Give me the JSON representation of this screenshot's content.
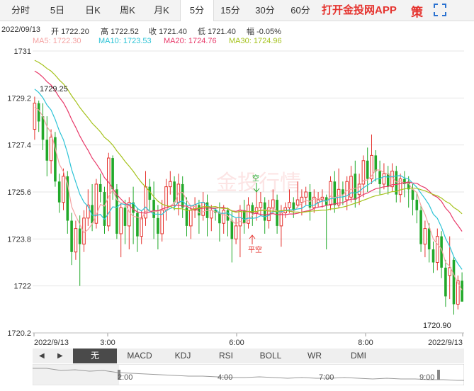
{
  "tabs": [
    "分时",
    "5日",
    "日K",
    "周K",
    "月K",
    "5分",
    "15分",
    "30分",
    "60分"
  ],
  "active_tab": "5分",
  "app_link": "打开金投网APP",
  "strategy_label": "策",
  "info": {
    "date": "2022/09/13",
    "open_label": "开",
    "open": "1722.20",
    "high_label": "高",
    "high": "1722.52",
    "close_label": "收",
    "close": "1721.40",
    "low_label": "低",
    "low": "1721.40",
    "change_label": "幅",
    "change": "-0.05%"
  },
  "ma": [
    {
      "label": "MA5: 1722.30",
      "color": "#f4a3a3"
    },
    {
      "label": "MA10: 1723.53",
      "color": "#2cc3d6"
    },
    {
      "label": "MA20: 1724.76",
      "color": "#e83a6a"
    },
    {
      "label": "MA30: 1724.96",
      "color": "#a5c21c"
    }
  ],
  "watermark": "金投行情",
  "signals": {
    "open_short": "空",
    "close_short": "平空"
  },
  "indicators": [
    "无",
    "MACD",
    "KDJ",
    "RSI",
    "BOLL",
    "WR",
    "DMI"
  ],
  "active_indicator": "无",
  "navigator": {
    "labels": [
      "2:00",
      "4:00",
      "7:00",
      "9:00"
    ]
  },
  "chart_data": {
    "type": "candlestick",
    "y_ticks": [
      "1731",
      "1729.2",
      "1727.4",
      "1725.6",
      "1723.8",
      "1722",
      "1720.2"
    ],
    "y_range": [
      1720.2,
      1731
    ],
    "x_labels": [
      "2022/9/13",
      "3:00",
      "6:00",
      "8:00",
      "2022/9/13"
    ],
    "max_label": "1729.25",
    "min_label": "1720.90",
    "candles": [
      [
        1728.0,
        1729.0,
        1729.25,
        1727.6
      ],
      [
        1729.0,
        1728.3,
        1729.1,
        1727.9
      ],
      [
        1728.5,
        1727.6,
        1729.0,
        1727.2
      ],
      [
        1727.6,
        1726.8,
        1728.5,
        1726.2
      ],
      [
        1726.8,
        1727.7,
        1728.0,
        1726.3
      ],
      [
        1727.7,
        1726.0,
        1727.9,
        1725.8
      ],
      [
        1726.0,
        1725.2,
        1726.3,
        1724.8
      ],
      [
        1725.2,
        1726.2,
        1726.5,
        1724.9
      ],
      [
        1726.2,
        1724.5,
        1726.4,
        1724.0
      ],
      [
        1724.5,
        1723.3,
        1724.8,
        1722.8
      ],
      [
        1723.3,
        1724.2,
        1724.5,
        1723.0
      ],
      [
        1724.2,
        1723.6,
        1724.7,
        1722.0
      ],
      [
        1723.6,
        1724.6,
        1724.9,
        1723.3
      ],
      [
        1724.6,
        1725.1,
        1725.7,
        1724.3
      ],
      [
        1725.1,
        1724.4,
        1725.9,
        1724.1
      ],
      [
        1724.4,
        1725.9,
        1726.1,
        1724.2
      ],
      [
        1725.9,
        1725.6,
        1726.3,
        1725.2
      ],
      [
        1725.6,
        1724.3,
        1725.8,
        1724.0
      ],
      [
        1724.3,
        1726.9,
        1727.1,
        1724.1
      ],
      [
        1726.9,
        1725.7,
        1727.0,
        1725.3
      ],
      [
        1725.7,
        1724.0,
        1725.9,
        1723.8
      ],
      [
        1724.0,
        1725.0,
        1725.2,
        1723.1
      ],
      [
        1725.0,
        1724.3,
        1725.3,
        1723.6
      ],
      [
        1724.3,
        1725.2,
        1725.4,
        1723.4
      ],
      [
        1725.2,
        1724.8,
        1725.8,
        1723.6
      ],
      [
        1724.8,
        1723.9,
        1725.0,
        1723.3
      ],
      [
        1723.9,
        1724.6,
        1724.9,
        1723.6
      ],
      [
        1724.6,
        1725.8,
        1726.4,
        1724.3
      ],
      [
        1725.8,
        1725.3,
        1726.1,
        1724.9
      ],
      [
        1725.3,
        1724.6,
        1726.0,
        1723.8
      ],
      [
        1724.6,
        1724.0,
        1725.1,
        1723.4
      ],
      [
        1724.0,
        1724.9,
        1725.3,
        1723.7
      ],
      [
        1724.9,
        1725.8,
        1726.1,
        1724.5
      ],
      [
        1725.8,
        1726.0,
        1726.4,
        1725.5
      ],
      [
        1726.0,
        1725.2,
        1726.2,
        1724.9
      ],
      [
        1725.2,
        1725.9,
        1726.3,
        1724.7
      ],
      [
        1725.9,
        1725.0,
        1726.2,
        1724.6
      ],
      [
        1725.0,
        1724.3,
        1725.4,
        1723.9
      ],
      [
        1724.3,
        1724.9,
        1725.1,
        1723.8
      ],
      [
        1724.9,
        1725.1,
        1725.4,
        1724.6
      ],
      [
        1725.1,
        1724.7,
        1725.3,
        1724.0
      ],
      [
        1724.7,
        1725.2,
        1725.6,
        1724.5
      ],
      [
        1725.2,
        1724.6,
        1725.5,
        1723.9
      ],
      [
        1724.6,
        1724.9,
        1725.1,
        1724.1
      ],
      [
        1724.9,
        1724.8,
        1725.0,
        1724.5
      ],
      [
        1724.8,
        1724.4,
        1725.2,
        1723.7
      ],
      [
        1724.4,
        1724.9,
        1725.1,
        1724.0
      ],
      [
        1724.9,
        1724.5,
        1725.0,
        1723.9
      ],
      [
        1724.5,
        1723.8,
        1724.9,
        1722.9
      ],
      [
        1723.8,
        1724.3,
        1724.6,
        1723.6
      ],
      [
        1724.3,
        1724.9,
        1725.1,
        1723.1
      ],
      [
        1724.9,
        1724.4,
        1725.3,
        1724.0
      ],
      [
        1724.4,
        1725.1,
        1725.4,
        1724.2
      ],
      [
        1725.1,
        1724.8,
        1725.2,
        1724.3
      ],
      [
        1724.8,
        1725.0,
        1725.6,
        1724.5
      ],
      [
        1725.0,
        1725.2,
        1725.6,
        1724.7
      ],
      [
        1725.2,
        1724.5,
        1725.4,
        1724.0
      ],
      [
        1724.5,
        1725.0,
        1725.3,
        1724.2
      ],
      [
        1725.0,
        1725.3,
        1725.7,
        1724.8
      ],
      [
        1725.3,
        1724.3,
        1725.5,
        1724.0
      ],
      [
        1724.3,
        1724.8,
        1725.1,
        1723.5
      ],
      [
        1724.8,
        1725.0,
        1725.2,
        1724.6
      ],
      [
        1725.0,
        1725.2,
        1725.7,
        1724.8
      ],
      [
        1725.2,
        1724.9,
        1725.4,
        1724.6
      ],
      [
        1725.1,
        1725.3,
        1726.0,
        1725.0
      ],
      [
        1725.2,
        1725.4,
        1725.7,
        1724.7
      ],
      [
        1725.4,
        1725.6,
        1725.8,
        1725.1
      ],
      [
        1725.6,
        1725.0,
        1725.9,
        1724.5
      ],
      [
        1725.0,
        1725.4,
        1725.7,
        1724.8
      ],
      [
        1725.2,
        1725.3,
        1725.6,
        1725.0
      ],
      [
        1725.3,
        1725.4,
        1725.7,
        1725.0
      ],
      [
        1725.4,
        1725.1,
        1725.5,
        1723.4
      ],
      [
        1725.1,
        1726.0,
        1726.2,
        1724.9
      ],
      [
        1726.0,
        1725.1,
        1726.4,
        1724.8
      ],
      [
        1725.1,
        1725.7,
        1726.5,
        1725.0
      ],
      [
        1725.7,
        1725.5,
        1726.0,
        1725.1
      ],
      [
        1725.3,
        1726.0,
        1726.2,
        1724.9
      ],
      [
        1725.4,
        1726.2,
        1726.6,
        1725.2
      ],
      [
        1726.3,
        1725.3,
        1726.8,
        1725.0
      ],
      [
        1725.5,
        1725.9,
        1726.3,
        1725.1
      ],
      [
        1725.9,
        1726.8,
        1727.0,
        1725.4
      ],
      [
        1726.8,
        1726.1,
        1727.3,
        1725.6
      ],
      [
        1726.1,
        1727.0,
        1727.8,
        1725.9
      ],
      [
        1727.0,
        1726.4,
        1727.2,
        1726.0
      ],
      [
        1726.4,
        1725.9,
        1726.8,
        1725.5
      ],
      [
        1725.9,
        1726.3,
        1726.7,
        1725.7
      ],
      [
        1726.3,
        1725.8,
        1726.6,
        1725.5
      ],
      [
        1725.8,
        1726.4,
        1726.7,
        1725.6
      ],
      [
        1726.4,
        1725.5,
        1726.6,
        1725.2
      ],
      [
        1725.5,
        1726.1,
        1726.3,
        1725.2
      ],
      [
        1726.1,
        1725.9,
        1726.4,
        1725.4
      ],
      [
        1726.0,
        1725.7,
        1726.2,
        1725.0
      ],
      [
        1725.7,
        1725.3,
        1725.9,
        1724.7
      ],
      [
        1725.3,
        1724.9,
        1725.6,
        1724.4
      ],
      [
        1724.9,
        1723.6,
        1725.1,
        1723.3
      ],
      [
        1723.6,
        1724.2,
        1724.5,
        1723.1
      ],
      [
        1724.2,
        1723.4,
        1724.4,
        1722.9
      ],
      [
        1723.4,
        1722.9,
        1723.7,
        1722.5
      ],
      [
        1722.9,
        1723.9,
        1724.2,
        1722.6
      ],
      [
        1723.9,
        1722.7,
        1724.1,
        1722.3
      ],
      [
        1722.7,
        1721.6,
        1723.0,
        1721.2
      ],
      [
        1722.4,
        1722.7,
        1723.9,
        1721.5
      ],
      [
        1723.0,
        1721.3,
        1723.1,
        1720.9
      ],
      [
        1721.3,
        1722.2,
        1722.4,
        1721.1
      ],
      [
        1722.2,
        1721.4,
        1722.52,
        1721.4
      ]
    ],
    "ma_series": [
      {
        "name": "MA5",
        "color": "#f4a3a3"
      },
      {
        "name": "MA10",
        "color": "#2cc3d6"
      },
      {
        "name": "MA20",
        "color": "#e83a6a"
      },
      {
        "name": "MA30",
        "color": "#a5c21c"
      }
    ],
    "ma_initial": {
      "MA5": 1728.8,
      "MA10": 1729.6,
      "MA20": 1730.3,
      "MA30": 1730.7
    },
    "up_color": "#e5322d",
    "down_color": "#22a92a"
  }
}
